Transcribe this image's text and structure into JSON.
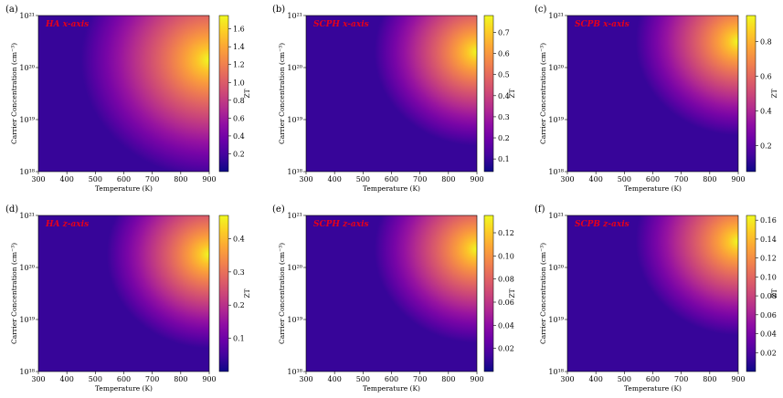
{
  "figure": {
    "colormap": "plasma",
    "xlabel": "Temperature (K)",
    "ylabel": "Carrier Concentration (cm⁻³)",
    "colorbar_label": "ZT"
  },
  "chart_data": [
    {
      "type": "heatmap",
      "panel": "(a)",
      "title": "HA x-axis",
      "xlabel": "Temperature (K)",
      "ylabel": "Carrier Concentration (cm⁻³)",
      "xlim": [
        300,
        900
      ],
      "xticks": [
        300,
        400,
        500,
        600,
        700,
        800,
        900
      ],
      "ylim_log10": [
        18,
        21
      ],
      "yticks": [
        "10¹⁸",
        "10¹⁹",
        "10²⁰",
        "10²¹"
      ],
      "zlabel": "ZT",
      "zlim": [
        0.0,
        1.75
      ],
      "cbar_ticks": [
        "0.2",
        "0.4",
        "0.6",
        "0.8",
        "1.0",
        "1.2",
        "1.4",
        "1.6"
      ],
      "peak": {
        "temperature_K": 900,
        "log10_concentration": 20.15
      },
      "peak_sharpness": 0.75
    },
    {
      "type": "heatmap",
      "panel": "(b)",
      "title": "SCPH x-axis",
      "xlabel": "Temperature (K)",
      "ylabel": "Carrier Concentration (cm⁻³)",
      "xlim": [
        300,
        900
      ],
      "xticks": [
        300,
        400,
        500,
        600,
        700,
        800,
        900
      ],
      "ylim_log10": [
        18,
        21
      ],
      "yticks": [
        "10¹⁸",
        "10¹⁹",
        "10²⁰",
        "10²¹"
      ],
      "zlabel": "ZT",
      "zlim": [
        0.04,
        0.78
      ],
      "cbar_ticks": [
        "0.1",
        "0.2",
        "0.3",
        "0.4",
        "0.5",
        "0.6",
        "0.7"
      ],
      "peak": {
        "temperature_K": 900,
        "log10_concentration": 20.3
      },
      "peak_sharpness": 0.6
    },
    {
      "type": "heatmap",
      "panel": "(c)",
      "title": "SCPB x-axis",
      "xlabel": "Temperature (K)",
      "ylabel": "Carrier Concentration (cm⁻³)",
      "xlim": [
        300,
        900
      ],
      "xticks": [
        300,
        400,
        500,
        600,
        700,
        800,
        900
      ],
      "ylim_log10": [
        18,
        21
      ],
      "yticks": [
        "10¹⁸",
        "10¹⁹",
        "10²⁰",
        "10²¹"
      ],
      "zlabel": "ZT",
      "zlim": [
        0.05,
        0.95
      ],
      "cbar_ticks": [
        "0.2",
        "0.4",
        "0.6",
        "0.8"
      ],
      "peak": {
        "temperature_K": 900,
        "log10_concentration": 20.5
      },
      "peak_sharpness": 0.6
    },
    {
      "type": "heatmap",
      "panel": "(d)",
      "title": "HA z-axis",
      "xlabel": "Temperature (K)",
      "ylabel": "Carrier Concentration (cm⁻³)",
      "xlim": [
        300,
        900
      ],
      "xticks": [
        300,
        400,
        500,
        600,
        700,
        800,
        900
      ],
      "ylim_log10": [
        18,
        21
      ],
      "yticks": [
        "10¹⁸",
        "10¹⁹",
        "10²⁰",
        "10²¹"
      ],
      "zlabel": "ZT",
      "zlim": [
        0.0,
        0.47
      ],
      "cbar_ticks": [
        "0.1",
        "0.2",
        "0.3",
        "0.4"
      ],
      "peak": {
        "temperature_K": 900,
        "log10_concentration": 20.25
      },
      "peak_sharpness": 0.6
    },
    {
      "type": "heatmap",
      "panel": "(e)",
      "title": "SCPH z-axis",
      "xlabel": "Temperature (K)",
      "ylabel": "Carrier Concentration (cm⁻³)",
      "xlim": [
        300,
        900
      ],
      "xticks": [
        300,
        400,
        500,
        600,
        700,
        800,
        900
      ],
      "ylim_log10": [
        18,
        21
      ],
      "yticks": [
        "10¹⁸",
        "10¹⁹",
        "10²⁰",
        "10²¹"
      ],
      "zlabel": "ZT",
      "zlim": [
        0.0,
        0.135
      ],
      "cbar_ticks": [
        "0.02",
        "0.04",
        "0.06",
        "0.08",
        "0.10",
        "0.12"
      ],
      "peak": {
        "temperature_K": 900,
        "log10_concentration": 20.35
      },
      "peak_sharpness": 0.6
    },
    {
      "type": "heatmap",
      "panel": "(f)",
      "title": "SCPB z-axis",
      "xlabel": "Temperature (K)",
      "ylabel": "Carrier Concentration (cm⁻³)",
      "xlim": [
        300,
        900
      ],
      "xticks": [
        300,
        400,
        500,
        600,
        700,
        800,
        900
      ],
      "ylim_log10": [
        18,
        21
      ],
      "yticks": [
        "10¹⁸",
        "10¹⁹",
        "10²⁰",
        "10²¹"
      ],
      "zlabel": "ZT",
      "zlim": [
        0.0,
        0.165
      ],
      "cbar_ticks": [
        "0.02",
        "0.04",
        "0.06",
        "0.08",
        "0.10",
        "0.12",
        "0.14",
        "0.16"
      ],
      "peak": {
        "temperature_K": 900,
        "log10_concentration": 20.5
      },
      "peak_sharpness": 0.6
    }
  ]
}
